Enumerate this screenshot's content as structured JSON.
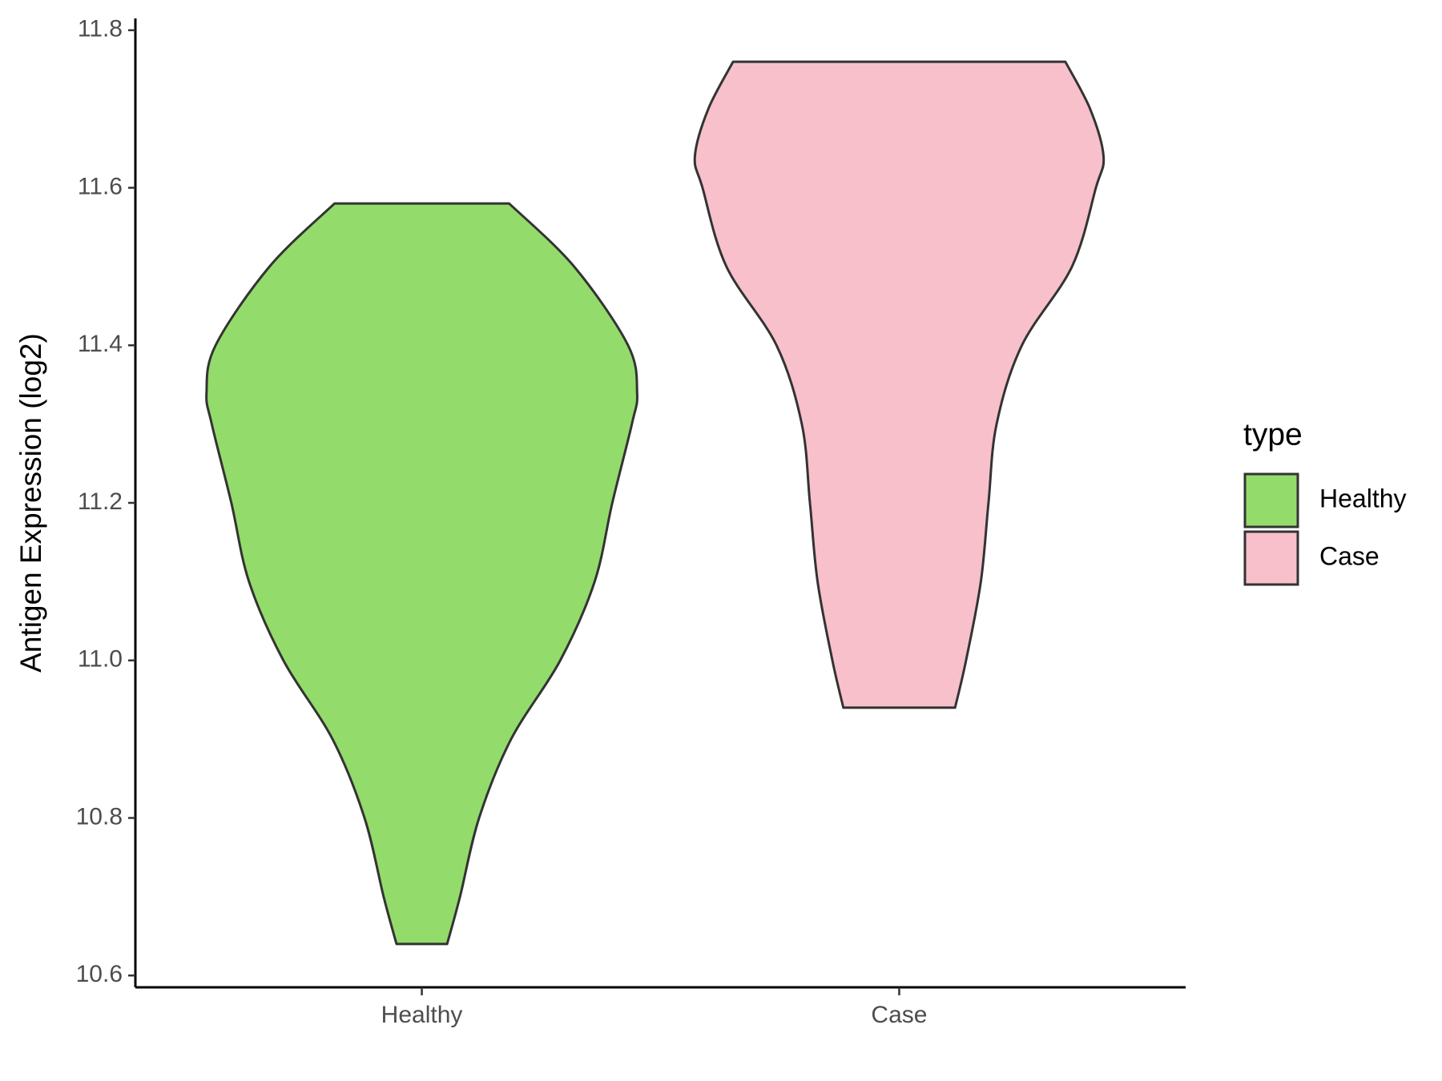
{
  "chart_data": {
    "type": "violin",
    "y_label": "Antigen Expression (log2)",
    "categories": [
      "Healthy",
      "Case"
    ],
    "legend_title": "type",
    "series": [
      {
        "name": "Healthy",
        "color": "#93dc6b",
        "y": [
          10.64,
          10.7,
          10.8,
          10.9,
          11.0,
          11.1,
          11.2,
          11.3,
          11.34,
          11.4,
          11.5,
          11.58
        ],
        "width": [
          0.053,
          0.08,
          0.12,
          0.187,
          0.29,
          0.362,
          0.399,
          0.44,
          0.451,
          0.432,
          0.319,
          0.183
        ]
      },
      {
        "name": "Case",
        "color": "#f7c0cb",
        "y": [
          10.94,
          11.0,
          11.1,
          11.2,
          11.3,
          11.4,
          11.5,
          11.6,
          11.64,
          11.7,
          11.76
        ],
        "width": [
          0.117,
          0.14,
          0.171,
          0.187,
          0.204,
          0.257,
          0.362,
          0.412,
          0.428,
          0.4,
          0.348
        ]
      }
    ],
    "ylim": [
      10.585,
      11.815
    ],
    "yticks": [
      10.6,
      10.8,
      {
        "value": 11,
        "label": "11.0"
      },
      11.2,
      11.4,
      11.6,
      11.8
    ],
    "grid": false
  }
}
